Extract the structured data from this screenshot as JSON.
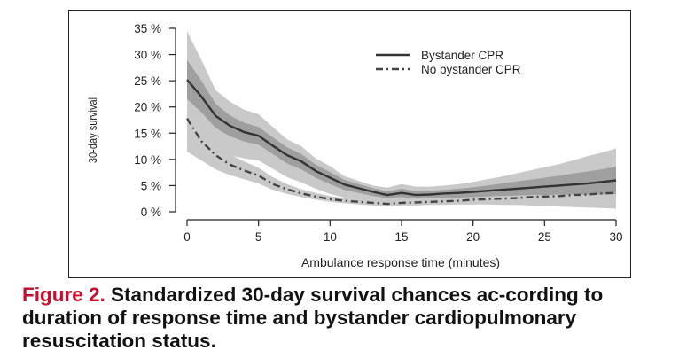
{
  "chart_data": {
    "type": "line",
    "xlabel": "Ambulance response time (minutes)",
    "ylabel": "30-day survival",
    "xlim": [
      0,
      30
    ],
    "ylim": [
      0,
      35
    ],
    "x_ticks": [
      "0",
      "5",
      "10",
      "15",
      "20",
      "25",
      "30"
    ],
    "y_ticks": [
      "0 %",
      "5 %",
      "10 %",
      "15 %",
      "20 %",
      "25 %",
      "30 %",
      "35 %"
    ],
    "legend_position": "top-right",
    "grid": false,
    "series": [
      {
        "name": "Bystander CPR",
        "style": "solid",
        "color": "#333333",
        "x": [
          0,
          1,
          2,
          3,
          4,
          5,
          6,
          7,
          8,
          9,
          10,
          11,
          12,
          13,
          14,
          15,
          16,
          17,
          18,
          19,
          20,
          21,
          22,
          23,
          24,
          25,
          26,
          27,
          28,
          29,
          30
        ],
        "values": [
          25.2,
          22.0,
          18.3,
          16.4,
          15.2,
          14.5,
          12.6,
          10.8,
          9.6,
          7.8,
          6.5,
          5.2,
          4.5,
          3.8,
          3.2,
          3.6,
          3.2,
          3.3,
          3.5,
          3.6,
          3.8,
          4.0,
          4.2,
          4.4,
          4.6,
          4.8,
          5.0,
          5.2,
          5.4,
          5.7,
          6.0
        ],
        "ci_outer_lower": [
          15.5,
          14.0,
          12.0,
          10.8,
          10.2,
          9.8,
          8.2,
          6.6,
          5.6,
          4.4,
          3.4,
          2.7,
          2.2,
          1.8,
          1.6,
          1.6,
          1.5,
          1.5,
          1.5,
          1.4,
          1.4,
          1.4,
          1.3,
          1.3,
          1.2,
          1.1,
          1.0,
          0.9,
          0.8,
          0.7,
          0.6
        ],
        "ci_outer_upper": [
          34.5,
          29.0,
          23.2,
          21.0,
          19.5,
          18.6,
          16.2,
          13.8,
          12.5,
          10.2,
          8.7,
          6.8,
          5.9,
          5.0,
          4.6,
          5.3,
          4.8,
          4.8,
          5.0,
          5.3,
          5.7,
          6.2,
          6.7,
          7.3,
          7.9,
          8.5,
          9.1,
          9.8,
          10.6,
          11.3,
          12.1
        ],
        "ci_inner_lower": [
          21.5,
          19.0,
          16.0,
          14.4,
          13.4,
          12.8,
          11.0,
          9.2,
          8.1,
          6.5,
          5.3,
          4.2,
          3.6,
          3.0,
          2.6,
          2.8,
          2.5,
          2.6,
          2.7,
          2.7,
          2.8,
          2.9,
          3.0,
          3.1,
          3.2,
          3.2,
          3.3,
          3.3,
          3.3,
          3.3,
          3.4
        ],
        "ci_inner_upper": [
          29.0,
          25.0,
          20.6,
          18.4,
          17.0,
          16.2,
          14.2,
          12.3,
          11.0,
          9.0,
          7.6,
          6.1,
          5.3,
          4.5,
          3.9,
          4.4,
          3.9,
          4.0,
          4.2,
          4.4,
          4.7,
          5.0,
          5.4,
          5.8,
          6.1,
          6.5,
          6.9,
          7.3,
          7.7,
          8.1,
          8.6
        ]
      },
      {
        "name": "No bystander CPR",
        "style": "dashdot",
        "color": "#444444",
        "x": [
          0,
          1,
          2,
          3,
          4,
          5,
          6,
          7,
          8,
          9,
          10,
          11,
          12,
          13,
          14,
          15,
          16,
          17,
          18,
          19,
          20,
          21,
          22,
          23,
          24,
          25,
          26,
          27,
          28,
          29,
          30
        ],
        "values": [
          17.8,
          13.5,
          10.8,
          9.0,
          7.9,
          6.9,
          5.3,
          4.3,
          3.5,
          2.9,
          2.4,
          2.1,
          1.9,
          1.7,
          1.5,
          1.7,
          1.8,
          1.9,
          2.0,
          2.1,
          2.3,
          2.4,
          2.5,
          2.6,
          2.8,
          2.9,
          3.0,
          3.2,
          3.3,
          3.5,
          3.6
        ],
        "ci_lower": [
          11.5,
          9.8,
          8.1,
          7.0,
          6.2,
          5.4,
          4.2,
          3.4,
          2.8,
          2.3,
          1.9,
          1.6,
          1.4,
          1.2,
          1.1,
          1.2,
          1.2,
          1.3,
          1.3,
          1.4,
          1.4,
          1.5,
          1.5,
          1.6,
          1.7,
          1.7,
          1.8,
          1.8,
          1.9,
          1.9,
          2.0
        ],
        "ci_upper": [
          24.0,
          17.5,
          13.5,
          11.0,
          9.6,
          8.4,
          6.6,
          5.3,
          4.3,
          3.6,
          3.0,
          2.6,
          2.3,
          2.1,
          1.9,
          2.2,
          2.3,
          2.5,
          2.7,
          2.9,
          3.1,
          3.3,
          3.5,
          3.7,
          3.9,
          4.1,
          4.3,
          4.5,
          4.8,
          5.0,
          5.3
        ]
      }
    ],
    "colors": {
      "band_outer": "#c9c9c9",
      "band_inner": "#9f9f9f",
      "line": "#333333",
      "axis": "#222222"
    }
  },
  "caption": {
    "lead": "Figure 2.",
    "text": "Standardized 30-day survival chances ac-cording to duration of response time and bystander cardiopulmonary resuscitation status."
  }
}
